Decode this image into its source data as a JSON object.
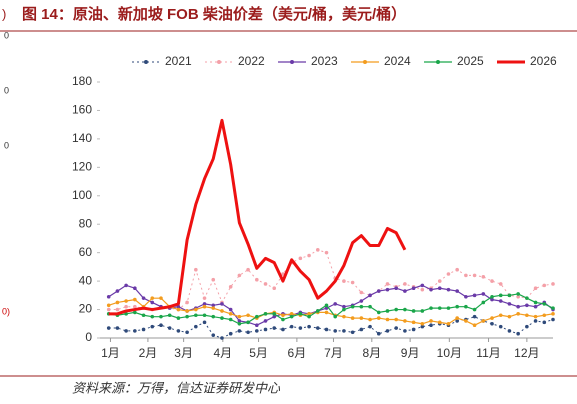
{
  "left_edge_fragments": [
    ")",
    "0",
    "0",
    "0",
    "0)"
  ],
  "chart_data": {
    "type": "line",
    "title": "图 14：原油、新加坡 FOB 柴油价差（美元/桶，美元/桶）",
    "source": "资料来源：万得，信达证券研发中心",
    "xlim": [
      0,
      52
    ],
    "xticks": [
      {
        "value": 1.2,
        "label": "1月"
      },
      {
        "value": 5.5,
        "label": "2月"
      },
      {
        "value": 9.6,
        "label": "3月"
      },
      {
        "value": 14.1,
        "label": "4月"
      },
      {
        "value": 18.2,
        "label": "5月"
      },
      {
        "value": 22.6,
        "label": "6月"
      },
      {
        "value": 26.8,
        "label": "7月"
      },
      {
        "value": 31.2,
        "label": "8月"
      },
      {
        "value": 35.6,
        "label": "9月"
      },
      {
        "value": 40.1,
        "label": "10月"
      },
      {
        "value": 44.6,
        "label": "11月"
      },
      {
        "value": 49.0,
        "label": "12月"
      }
    ],
    "ylim": [
      0,
      180
    ],
    "yticks": [
      0,
      20,
      40,
      60,
      80,
      100,
      120,
      140,
      160,
      180
    ],
    "x": [
      1,
      2,
      3,
      4,
      5,
      6,
      7,
      8,
      9,
      10,
      11,
      12,
      13,
      14,
      15,
      16,
      17,
      18,
      19,
      20,
      21,
      22,
      23,
      24,
      25,
      26,
      27,
      28,
      29,
      30,
      31,
      32,
      33,
      34,
      35,
      36,
      37,
      38,
      39,
      40,
      41,
      42,
      43,
      44,
      45,
      46,
      47,
      48,
      49,
      50,
      51,
      52
    ],
    "series": [
      {
        "name": "2021",
        "color": "#2f4a7a",
        "dashed": true,
        "marker": true,
        "width": 1,
        "values": [
          7,
          7,
          5,
          5,
          6,
          8,
          9,
          7,
          5,
          4,
          8,
          11,
          2,
          0,
          3,
          5,
          4,
          5,
          6,
          7,
          6,
          8,
          7,
          8,
          7,
          6,
          5,
          5,
          4,
          6,
          8,
          3,
          5,
          7,
          5,
          6,
          8,
          9,
          10,
          9,
          12,
          13,
          15,
          12,
          10,
          8,
          5,
          3,
          8,
          12,
          11,
          13
        ]
      },
      {
        "name": "2022",
        "color": "#f4a0a8",
        "dashed": true,
        "marker": true,
        "width": 1,
        "values": [
          20,
          20,
          22,
          22,
          21,
          20,
          22,
          21,
          20,
          25,
          48,
          28,
          41,
          25,
          36,
          44,
          48,
          41,
          38,
          35,
          45,
          53,
          56,
          58,
          62,
          60,
          42,
          40,
          39,
          32,
          30,
          33,
          38,
          36,
          38,
          36,
          34,
          35,
          40,
          45,
          48,
          44,
          44,
          43,
          40,
          38,
          30,
          29,
          28,
          35,
          37,
          38
        ]
      },
      {
        "name": "2023",
        "color": "#6a3aa8",
        "dashed": false,
        "marker": true,
        "width": 1.2,
        "values": [
          29,
          33,
          37,
          35,
          28,
          25,
          22,
          21,
          22,
          19,
          21,
          24,
          23,
          24,
          20,
          12,
          11,
          9,
          12,
          15,
          17,
          16,
          18,
          17,
          19,
          21,
          24,
          22,
          23,
          26,
          30,
          33,
          34,
          35,
          33,
          35,
          37,
          34,
          35,
          34,
          33,
          29,
          30,
          31,
          27,
          26,
          24,
          22,
          23,
          22,
          25,
          20
        ]
      },
      {
        "name": "2024",
        "color": "#f39c1e",
        "dashed": false,
        "marker": true,
        "width": 1.2,
        "values": [
          23,
          25,
          26,
          27,
          22,
          28,
          28,
          22,
          20,
          19,
          20,
          22,
          21,
          19,
          17,
          15,
          16,
          14,
          17,
          18,
          16,
          17,
          16,
          17,
          18,
          18,
          16,
          15,
          14,
          14,
          13,
          14,
          13,
          13,
          12,
          11,
          10,
          12,
          11,
          10,
          14,
          12,
          9,
          12,
          14,
          16,
          15,
          17,
          16,
          15,
          16,
          17
        ]
      },
      {
        "name": "2025",
        "color": "#1aa64a",
        "dashed": false,
        "marker": true,
        "width": 1.2,
        "values": [
          17,
          16,
          17,
          18,
          16,
          15,
          15,
          16,
          14,
          15,
          16,
          16,
          15,
          14,
          13,
          10,
          11,
          15,
          17,
          17,
          13,
          15,
          17,
          15,
          19,
          23,
          15,
          20,
          22,
          22,
          22,
          18,
          19,
          20,
          20,
          19,
          19,
          21,
          21,
          21,
          22,
          22,
          20,
          25,
          29,
          30,
          30,
          31,
          28,
          25,
          24,
          21
        ]
      },
      {
        "name": "2026",
        "color": "#ee1111",
        "dashed": false,
        "marker": false,
        "width": 3,
        "values": [
          17,
          17,
          19,
          20,
          21,
          20,
          21,
          22,
          24,
          69,
          94,
          112,
          126,
          153,
          122,
          81,
          66,
          49,
          56,
          53,
          40,
          55,
          47,
          41,
          28,
          33,
          40,
          51,
          67,
          72,
          65,
          65,
          77,
          74,
          62,
          null,
          null,
          null,
          null,
          null,
          null,
          null,
          null,
          null,
          null,
          null,
          null,
          null,
          null,
          null,
          null,
          null
        ]
      }
    ]
  }
}
